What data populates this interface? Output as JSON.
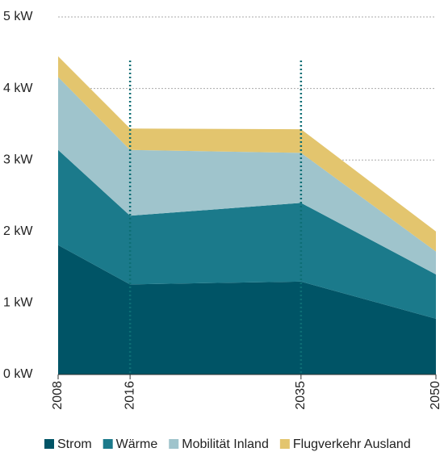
{
  "chart_data": {
    "type": "stacked_area",
    "x": [
      2008,
      2016,
      2035,
      2050
    ],
    "series": [
      {
        "name": "Strom",
        "color": "#005466",
        "values": [
          1.81,
          1.26,
          1.3,
          0.78
        ]
      },
      {
        "name": "Wärme",
        "color": "#1b7a8b",
        "values": [
          1.33,
          0.96,
          1.1,
          0.62
        ]
      },
      {
        "name": "Mobilität Inland",
        "color": "#9fc4cc",
        "values": [
          1.02,
          0.92,
          0.7,
          0.32
        ]
      },
      {
        "name": "Flugverkehr Ausland",
        "color": "#e3c56e",
        "values": [
          0.29,
          0.3,
          0.33,
          0.28
        ]
      }
    ],
    "xlim": [
      2008,
      2050
    ],
    "xticks": [
      2008,
      2016,
      2035,
      2050
    ],
    "ylim": [
      0,
      5
    ],
    "yticks": [
      {
        "value": 0,
        "label": "0 kW"
      },
      {
        "value": 1,
        "label": "1 kW"
      },
      {
        "value": 2,
        "label": "2 kW"
      },
      {
        "value": 3,
        "label": "3 kW"
      },
      {
        "value": 4,
        "label": "4 kW"
      },
      {
        "value": 5,
        "label": "5 kW"
      }
    ],
    "grid": true,
    "vlines": [
      2016,
      2035
    ],
    "legend": "bottom"
  }
}
